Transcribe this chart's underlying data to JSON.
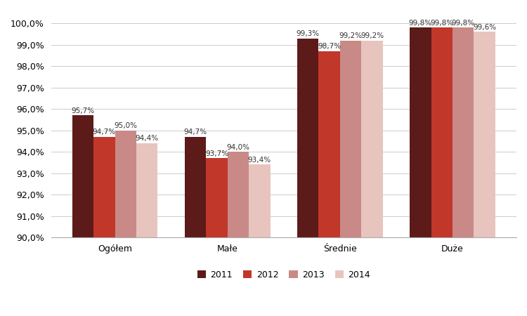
{
  "categories": [
    "Ogółem",
    "Małe",
    "Średnie",
    "Duże"
  ],
  "years": [
    "2011",
    "2012",
    "2013",
    "2014"
  ],
  "values": {
    "2011": [
      95.7,
      94.7,
      99.3,
      99.8
    ],
    "2012": [
      94.7,
      93.7,
      98.7,
      99.8
    ],
    "2013": [
      95.0,
      94.0,
      99.2,
      99.8
    ],
    "2014": [
      94.4,
      93.4,
      99.2,
      99.6
    ]
  },
  "colors": [
    "#5C1A18",
    "#C1372A",
    "#C98A87",
    "#E8C4BF"
  ],
  "ylim": [
    90.0,
    100.6
  ],
  "yticks": [
    90.0,
    91.0,
    92.0,
    93.0,
    94.0,
    95.0,
    96.0,
    97.0,
    98.0,
    99.0,
    100.0
  ],
  "bar_width": 0.19,
  "label_fontsize": 7.5,
  "axis_fontsize": 9,
  "legend_fontsize": 9,
  "background_color": "#FFFFFF",
  "grid_color": "#CCCCCC"
}
